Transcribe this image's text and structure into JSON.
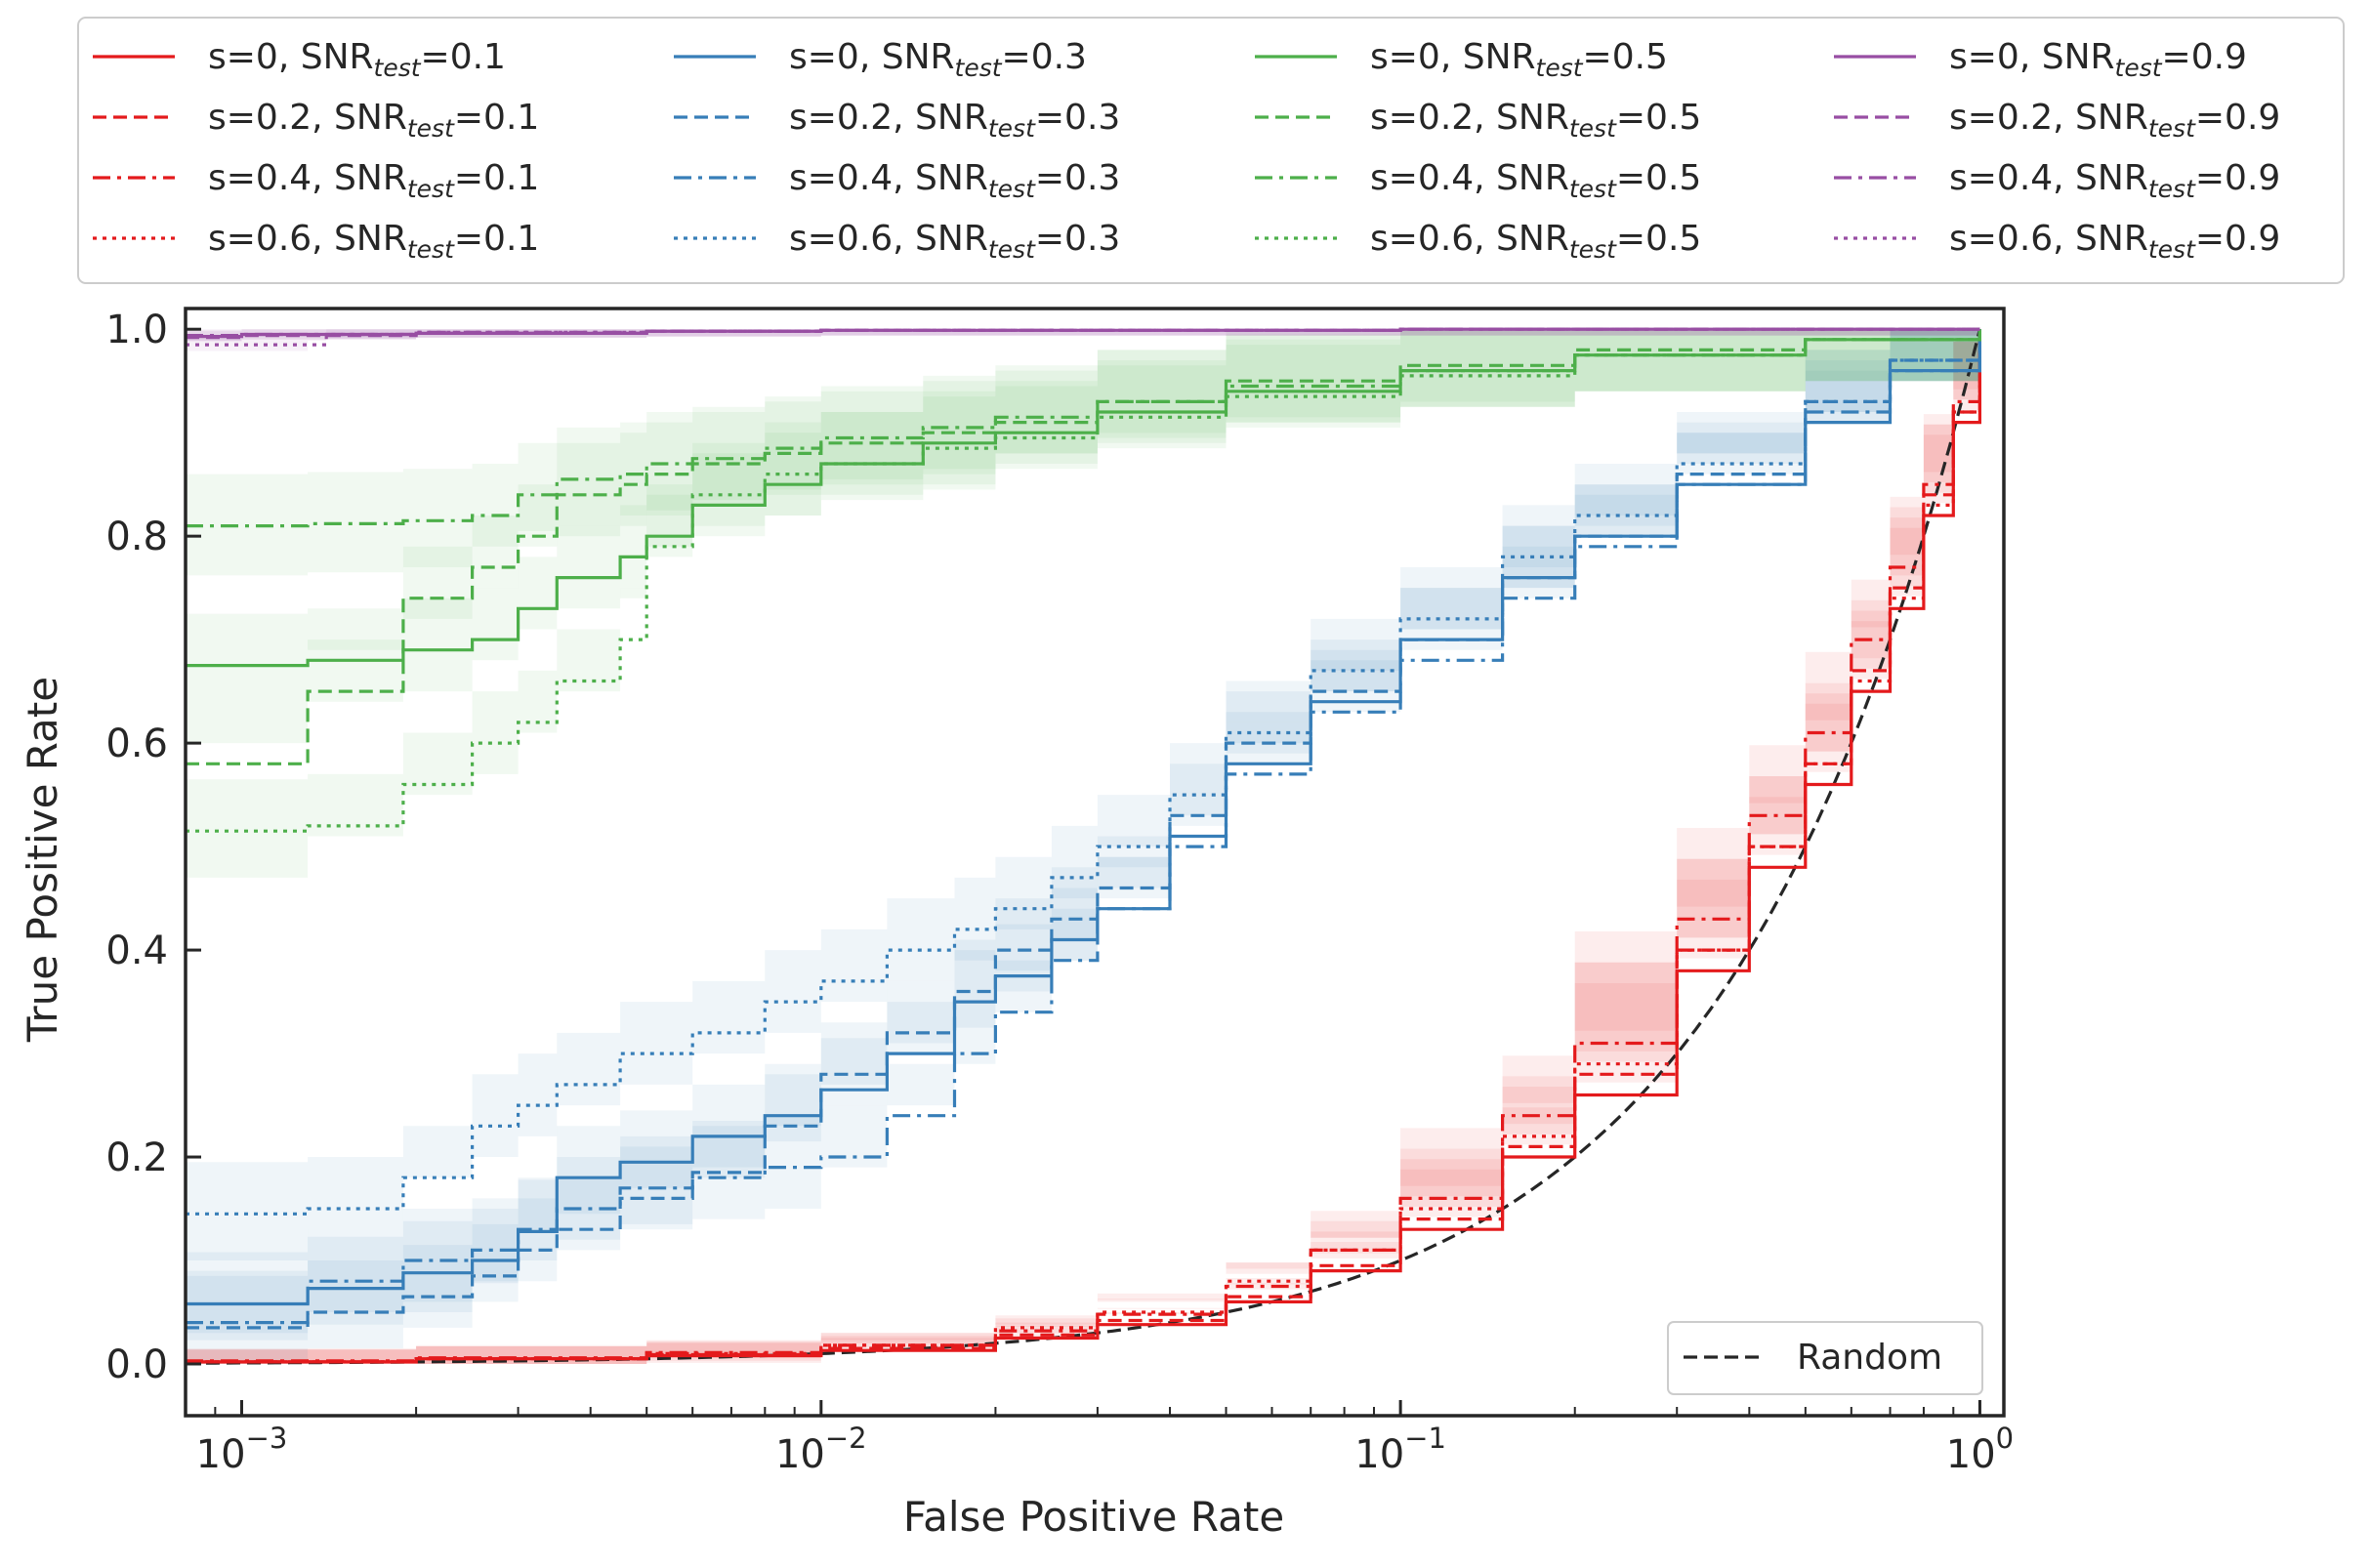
{
  "chart_data": {
    "type": "line",
    "xlabel": "False Positive Rate",
    "ylabel": "True Positive Rate",
    "xscale": "log",
    "xlim": [
      0.0008,
      1.1
    ],
    "ylim": [
      -0.05,
      1.02
    ],
    "x_tick_labels": [
      {
        "value": 0.001,
        "base": "10",
        "exp": "−3"
      },
      {
        "value": 0.01,
        "base": "10",
        "exp": "−2"
      },
      {
        "value": 0.1,
        "base": "10",
        "exp": "−1"
      },
      {
        "value": 1,
        "base": "10",
        "exp": "0"
      }
    ],
    "y_ticks": [
      0.0,
      0.2,
      0.4,
      0.6,
      0.8,
      1.0
    ],
    "y_tick_labels": [
      "0.0",
      "0.2",
      "0.4",
      "0.6",
      "0.8",
      "1.0"
    ],
    "grid": false,
    "legend_placement": "top-outside",
    "colors": {
      "red": "#e41a1c",
      "blue": "#377eb8",
      "green": "#4daf4a",
      "purple": "#984ea3",
      "random": "#262626"
    },
    "series": [
      {
        "legend_prefix": "s=0,    ",
        "snr_label": "SNR",
        "snr_sub": "test",
        "snr_value": "=0.1",
        "color": "red",
        "dash": "solid",
        "x": [
          0.0008,
          0.002,
          0.005,
          0.01,
          0.02,
          0.03,
          0.05,
          0.07,
          0.1,
          0.15,
          0.2,
          0.3,
          0.4,
          0.5,
          0.6,
          0.7,
          0.8,
          0.9,
          1.0
        ],
        "y": [
          0.002,
          0.005,
          0.008,
          0.013,
          0.025,
          0.038,
          0.06,
          0.09,
          0.13,
          0.2,
          0.26,
          0.38,
          0.48,
          0.56,
          0.65,
          0.73,
          0.82,
          0.91,
          1.0
        ]
      },
      {
        "legend_prefix": "s=0.2, ",
        "snr_label": "SNR",
        "snr_sub": "test",
        "snr_value": "=0.1",
        "color": "red",
        "dash": "dashed",
        "x": [
          0.0008,
          0.002,
          0.005,
          0.01,
          0.02,
          0.03,
          0.05,
          0.07,
          0.1,
          0.15,
          0.2,
          0.3,
          0.4,
          0.5,
          0.6,
          0.7,
          0.8,
          0.9,
          1.0
        ],
        "y": [
          0.002,
          0.005,
          0.009,
          0.015,
          0.028,
          0.042,
          0.065,
          0.095,
          0.14,
          0.21,
          0.28,
          0.4,
          0.5,
          0.58,
          0.67,
          0.75,
          0.84,
          0.92,
          1.0
        ]
      },
      {
        "legend_prefix": "s=0.4, ",
        "snr_label": "SNR",
        "snr_sub": "test",
        "snr_value": "=0.1",
        "color": "red",
        "dash": "dashdot",
        "x": [
          0.0008,
          0.002,
          0.005,
          0.01,
          0.02,
          0.03,
          0.05,
          0.07,
          0.1,
          0.15,
          0.2,
          0.3,
          0.4,
          0.5,
          0.6,
          0.7,
          0.8,
          0.9,
          1.0
        ],
        "y": [
          0.003,
          0.006,
          0.011,
          0.018,
          0.032,
          0.048,
          0.075,
          0.11,
          0.16,
          0.24,
          0.31,
          0.43,
          0.53,
          0.61,
          0.7,
          0.77,
          0.85,
          0.93,
          1.0
        ]
      },
      {
        "legend_prefix": "s=0.6, ",
        "snr_label": "SNR",
        "snr_sub": "test",
        "snr_value": "=0.1",
        "color": "red",
        "dash": "dotted",
        "x": [
          0.0008,
          0.002,
          0.005,
          0.01,
          0.02,
          0.03,
          0.05,
          0.07,
          0.1,
          0.15,
          0.2,
          0.3,
          0.4,
          0.5,
          0.6,
          0.7,
          0.8,
          0.9,
          1.0
        ],
        "y": [
          0.002,
          0.005,
          0.01,
          0.018,
          0.035,
          0.05,
          0.08,
          0.11,
          0.15,
          0.22,
          0.29,
          0.4,
          0.5,
          0.58,
          0.66,
          0.74,
          0.83,
          0.92,
          1.0
        ]
      },
      {
        "legend_prefix": "s=0,    ",
        "snr_label": "SNR",
        "snr_sub": "test",
        "snr_value": "=0.3",
        "color": "blue",
        "dash": "solid",
        "x": [
          0.0008,
          0.0013,
          0.0019,
          0.0025,
          0.003,
          0.0035,
          0.0045,
          0.006,
          0.008,
          0.01,
          0.013,
          0.017,
          0.02,
          0.025,
          0.03,
          0.04,
          0.05,
          0.07,
          0.1,
          0.15,
          0.2,
          0.3,
          0.5,
          0.7,
          1.0
        ],
        "y": [
          0.058,
          0.073,
          0.088,
          0.1,
          0.128,
          0.18,
          0.195,
          0.22,
          0.24,
          0.265,
          0.3,
          0.35,
          0.375,
          0.41,
          0.44,
          0.51,
          0.58,
          0.64,
          0.7,
          0.76,
          0.8,
          0.85,
          0.91,
          0.96,
          1.0
        ]
      },
      {
        "legend_prefix": "s=0.2, ",
        "snr_label": "SNR",
        "snr_sub": "test",
        "snr_value": "=0.3",
        "color": "blue",
        "dash": "dashed",
        "x": [
          0.0008,
          0.0013,
          0.0019,
          0.0025,
          0.003,
          0.0035,
          0.0045,
          0.006,
          0.008,
          0.01,
          0.013,
          0.017,
          0.02,
          0.025,
          0.03,
          0.04,
          0.05,
          0.07,
          0.1,
          0.15,
          0.2,
          0.3,
          0.5,
          0.7,
          1.0
        ],
        "y": [
          0.035,
          0.05,
          0.065,
          0.085,
          0.11,
          0.13,
          0.16,
          0.185,
          0.23,
          0.28,
          0.32,
          0.36,
          0.4,
          0.43,
          0.46,
          0.53,
          0.6,
          0.65,
          0.7,
          0.76,
          0.8,
          0.86,
          0.93,
          0.97,
          1.0
        ]
      },
      {
        "legend_prefix": "s=0.4, ",
        "snr_label": "SNR",
        "snr_sub": "test",
        "snr_value": "=0.3",
        "color": "blue",
        "dash": "dashdot",
        "x": [
          0.0008,
          0.0013,
          0.0019,
          0.0025,
          0.003,
          0.0035,
          0.0045,
          0.006,
          0.008,
          0.01,
          0.013,
          0.017,
          0.02,
          0.025,
          0.03,
          0.04,
          0.05,
          0.07,
          0.1,
          0.15,
          0.2,
          0.3,
          0.5,
          0.7,
          1.0
        ],
        "y": [
          0.04,
          0.08,
          0.1,
          0.11,
          0.13,
          0.15,
          0.17,
          0.18,
          0.19,
          0.2,
          0.24,
          0.3,
          0.34,
          0.39,
          0.44,
          0.5,
          0.57,
          0.63,
          0.68,
          0.74,
          0.79,
          0.85,
          0.92,
          0.96,
          1.0
        ]
      },
      {
        "legend_prefix": "s=0.6, ",
        "snr_label": "SNR",
        "snr_sub": "test",
        "snr_value": "=0.3",
        "color": "blue",
        "dash": "dotted",
        "x": [
          0.0008,
          0.0013,
          0.0019,
          0.0025,
          0.003,
          0.0035,
          0.0045,
          0.006,
          0.008,
          0.01,
          0.013,
          0.017,
          0.02,
          0.025,
          0.03,
          0.04,
          0.05,
          0.07,
          0.1,
          0.15,
          0.2,
          0.3,
          0.5,
          0.7,
          1.0
        ],
        "y": [
          0.145,
          0.15,
          0.18,
          0.23,
          0.25,
          0.27,
          0.3,
          0.32,
          0.35,
          0.37,
          0.4,
          0.42,
          0.44,
          0.47,
          0.5,
          0.55,
          0.61,
          0.67,
          0.72,
          0.78,
          0.82,
          0.87,
          0.93,
          0.97,
          1.0
        ]
      },
      {
        "legend_prefix": "s=0,    ",
        "snr_label": "SNR",
        "snr_sub": "test",
        "snr_value": "=0.5",
        "color": "green",
        "dash": "solid",
        "x": [
          0.0008,
          0.0013,
          0.0019,
          0.0025,
          0.003,
          0.0035,
          0.0045,
          0.005,
          0.006,
          0.008,
          0.01,
          0.015,
          0.02,
          0.03,
          0.05,
          0.1,
          0.2,
          0.5,
          1.0
        ],
        "y": [
          0.675,
          0.68,
          0.69,
          0.7,
          0.73,
          0.76,
          0.78,
          0.8,
          0.83,
          0.85,
          0.87,
          0.89,
          0.9,
          0.92,
          0.94,
          0.96,
          0.975,
          0.99,
          1.0
        ]
      },
      {
        "legend_prefix": "s=0.2, ",
        "snr_label": "SNR",
        "snr_sub": "test",
        "snr_value": "=0.5",
        "color": "green",
        "dash": "dashed",
        "x": [
          0.0008,
          0.0013,
          0.0019,
          0.0025,
          0.003,
          0.0035,
          0.0045,
          0.005,
          0.006,
          0.008,
          0.01,
          0.015,
          0.02,
          0.03,
          0.05,
          0.1,
          0.2,
          0.5,
          1.0
        ],
        "y": [
          0.58,
          0.65,
          0.74,
          0.77,
          0.8,
          0.84,
          0.85,
          0.86,
          0.87,
          0.88,
          0.89,
          0.9,
          0.91,
          0.93,
          0.95,
          0.965,
          0.98,
          0.99,
          1.0
        ]
      },
      {
        "legend_prefix": "s=0.4, ",
        "snr_label": "SNR",
        "snr_sub": "test",
        "snr_value": "=0.5",
        "color": "green",
        "dash": "dashdot",
        "x": [
          0.0008,
          0.0013,
          0.0019,
          0.0025,
          0.003,
          0.0035,
          0.0045,
          0.005,
          0.006,
          0.008,
          0.01,
          0.015,
          0.02,
          0.03,
          0.05,
          0.1,
          0.2,
          0.5,
          1.0
        ],
        "y": [
          0.81,
          0.812,
          0.815,
          0.82,
          0.84,
          0.855,
          0.86,
          0.87,
          0.875,
          0.885,
          0.895,
          0.905,
          0.915,
          0.93,
          0.945,
          0.96,
          0.975,
          0.99,
          1.0
        ]
      },
      {
        "legend_prefix": "s=0.6, ",
        "snr_label": "SNR",
        "snr_sub": "test",
        "snr_value": "=0.5",
        "color": "green",
        "dash": "dotted",
        "x": [
          0.0008,
          0.0013,
          0.0019,
          0.0025,
          0.003,
          0.0035,
          0.0045,
          0.005,
          0.006,
          0.008,
          0.01,
          0.015,
          0.02,
          0.03,
          0.05,
          0.1,
          0.2,
          0.5,
          1.0
        ],
        "y": [
          0.515,
          0.52,
          0.56,
          0.6,
          0.62,
          0.66,
          0.7,
          0.79,
          0.84,
          0.86,
          0.87,
          0.885,
          0.895,
          0.915,
          0.935,
          0.955,
          0.975,
          0.99,
          1.0
        ]
      },
      {
        "legend_prefix": "s=0,    ",
        "snr_label": "SNR",
        "snr_sub": "test",
        "snr_value": "=0.9",
        "color": "purple",
        "dash": "solid",
        "x": [
          0.0008,
          0.001,
          0.002,
          0.005,
          0.01,
          0.1,
          1.0
        ],
        "y": [
          0.993,
          0.995,
          0.996,
          0.998,
          0.999,
          1.0,
          1.0
        ]
      },
      {
        "legend_prefix": "s=0.2, ",
        "snr_label": "SNR",
        "snr_sub": "test",
        "snr_value": "=0.9",
        "color": "purple",
        "dash": "dashed",
        "x": [
          0.0008,
          0.001,
          0.002,
          0.005,
          0.01,
          0.1,
          1.0
        ],
        "y": [
          0.992,
          0.994,
          0.996,
          0.998,
          0.999,
          1.0,
          1.0
        ]
      },
      {
        "legend_prefix": "s=0.4, ",
        "snr_label": "SNR",
        "snr_sub": "test",
        "snr_value": "=0.9",
        "color": "purple",
        "dash": "dashdot",
        "x": [
          0.0008,
          0.001,
          0.002,
          0.005,
          0.01,
          0.1,
          1.0
        ],
        "y": [
          0.994,
          0.995,
          0.997,
          0.998,
          0.999,
          1.0,
          1.0
        ]
      },
      {
        "legend_prefix": "s=0.6, ",
        "snr_label": "SNR",
        "snr_sub": "test",
        "snr_value": "=0.9",
        "color": "purple",
        "dash": "dotted",
        "x": [
          0.0008,
          0.0013,
          0.0014,
          0.002,
          0.005,
          0.01,
          0.1,
          1.0
        ],
        "y": [
          0.985,
          0.985,
          0.995,
          0.997,
          0.998,
          0.999,
          1.0,
          1.0
        ]
      }
    ],
    "random_line": {
      "name": "Random",
      "color": "random",
      "dash": "dashed"
    }
  }
}
